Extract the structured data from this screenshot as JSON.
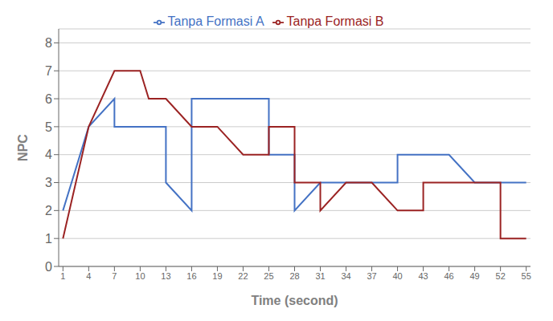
{
  "chart_data": {
    "type": "line",
    "x_label": "Time (second)",
    "y_label": "NPC",
    "series": [
      {
        "name": "Tanpa Formasi A",
        "color": "#4472C4",
        "x": [
          1,
          4,
          7,
          7,
          10,
          10,
          13,
          13,
          16,
          16,
          19,
          22,
          25,
          25,
          28,
          28,
          31,
          34,
          37,
          40,
          40,
          43,
          46,
          49,
          52,
          55
        ],
        "values": [
          2,
          5,
          6,
          5,
          5,
          5,
          5,
          3,
          2,
          6,
          6,
          6,
          6,
          4,
          4,
          2,
          3,
          3,
          3,
          3,
          4,
          4,
          4,
          3,
          3,
          3
        ]
      },
      {
        "name": "Tanpa Formasi B",
        "color": "#9B2323",
        "x": [
          1,
          4,
          7,
          10,
          11,
          13,
          16,
          19,
          22,
          25,
          25,
          28,
          28,
          31,
          31,
          34,
          37,
          40,
          43,
          43,
          46,
          49,
          52,
          52,
          55
        ],
        "values": [
          1,
          5,
          7,
          7,
          6,
          6,
          5,
          5,
          4,
          4,
          5,
          5,
          3,
          3,
          2,
          3,
          3,
          2,
          2,
          3,
          3,
          3,
          3,
          1,
          1
        ]
      }
    ],
    "xlim": [
      0.5,
      55.5
    ],
    "xticks": [
      1,
      4,
      7,
      10,
      13,
      16,
      19,
      22,
      25,
      28,
      31,
      34,
      37,
      40,
      43,
      46,
      49,
      52,
      55
    ],
    "ylim": [
      0,
      8.5
    ],
    "yticks": [
      0,
      1,
      2,
      3,
      4,
      5,
      6,
      7,
      8
    ],
    "grid": true,
    "legend": "top"
  }
}
